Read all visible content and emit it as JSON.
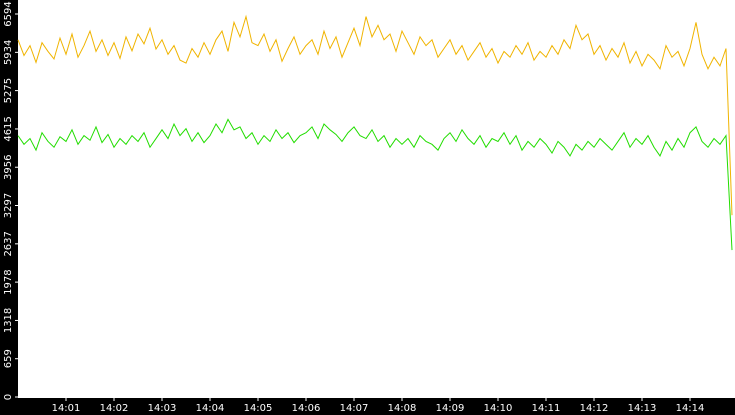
{
  "chart_data": {
    "type": "line",
    "categories": [
      null,
      null,
      null,
      null,
      null,
      null,
      null,
      null,
      "14:01",
      null,
      null,
      null,
      null,
      null,
      null,
      null,
      "14:02",
      null,
      null,
      null,
      null,
      null,
      null,
      null,
      "14:03",
      null,
      null,
      null,
      null,
      null,
      null,
      null,
      "14:04",
      null,
      null,
      null,
      null,
      null,
      null,
      null,
      "14:05",
      null,
      null,
      null,
      null,
      null,
      null,
      null,
      "14:06",
      null,
      null,
      null,
      null,
      null,
      null,
      null,
      "14:07",
      null,
      null,
      null,
      null,
      null,
      null,
      null,
      "14:08",
      null,
      null,
      null,
      null,
      null,
      null,
      null,
      "14:09",
      null,
      null,
      null,
      null,
      null,
      null,
      null,
      "14:10",
      null,
      null,
      null,
      null,
      null,
      null,
      null,
      "14:11",
      null,
      null,
      null,
      null,
      null,
      null,
      null,
      "14:12",
      null,
      null,
      null,
      null,
      null,
      null,
      null,
      "14:13",
      null,
      null,
      null,
      null,
      null,
      null,
      null,
      "14:14",
      null,
      null,
      null,
      null,
      null,
      null,
      null
    ],
    "series": [
      {
        "color": "#f0b400",
        "values": [
          6150,
          5880,
          6050,
          5760,
          6100,
          5950,
          5820,
          6180,
          5900,
          6250,
          5850,
          6050,
          6300,
          5950,
          6150,
          5880,
          6100,
          5830,
          6200,
          5960,
          6250,
          6080,
          6350,
          5990,
          6150,
          5900,
          6050,
          5800,
          5750,
          6000,
          5850,
          6100,
          5900,
          6150,
          6300,
          5950,
          6450,
          6200,
          6550,
          6100,
          6050,
          6250,
          5950,
          6150,
          5780,
          6000,
          6200,
          5900,
          6050,
          6150,
          5900,
          6300,
          6000,
          6200,
          5850,
          6100,
          6350,
          6050,
          6550,
          6200,
          6400,
          6150,
          6250,
          5950,
          6300,
          6100,
          5900,
          6200,
          6050,
          6150,
          5850,
          6000,
          6150,
          5900,
          6050,
          5800,
          5950,
          6100,
          5850,
          6000,
          5750,
          5950,
          5850,
          6050,
          5900,
          6100,
          5800,
          5950,
          5850,
          6050,
          5900,
          6150,
          6000,
          6400,
          6150,
          6250,
          5900,
          6050,
          5800,
          6000,
          5850,
          6100,
          5750,
          5950,
          5700,
          5900,
          5800,
          5650,
          6050,
          5850,
          5950,
          5700,
          6000,
          6450,
          5900,
          5650,
          5850,
          5700,
          6000,
          3130
        ]
      },
      {
        "color": "#22dd00",
        "values": [
          4500,
          4350,
          4450,
          4250,
          4550,
          4400,
          4300,
          4480,
          4400,
          4600,
          4350,
          4500,
          4420,
          4650,
          4380,
          4520,
          4300,
          4450,
          4350,
          4500,
          4400,
          4550,
          4300,
          4450,
          4600,
          4450,
          4700,
          4500,
          4620,
          4400,
          4550,
          4380,
          4500,
          4700,
          4550,
          4780,
          4600,
          4650,
          4450,
          4550,
          4350,
          4500,
          4400,
          4600,
          4450,
          4550,
          4380,
          4500,
          4550,
          4650,
          4450,
          4700,
          4600,
          4520,
          4400,
          4550,
          4650,
          4500,
          4450,
          4600,
          4400,
          4500,
          4300,
          4450,
          4350,
          4450,
          4300,
          4500,
          4400,
          4350,
          4250,
          4450,
          4550,
          4400,
          4600,
          4450,
          4350,
          4500,
          4300,
          4450,
          4400,
          4550,
          4350,
          4500,
          4250,
          4400,
          4300,
          4450,
          4350,
          4200,
          4400,
          4300,
          4150,
          4350,
          4250,
          4400,
          4300,
          4450,
          4350,
          4250,
          4400,
          4550,
          4300,
          4450,
          4350,
          4500,
          4300,
          4150,
          4400,
          4250,
          4450,
          4300,
          4550,
          4650,
          4400,
          4300,
          4450,
          4350,
          4500,
          2530
        ]
      }
    ],
    "ylim": [
      0,
      6594
    ],
    "yticks": [
      0,
      659,
      1318,
      1978,
      2637,
      3297,
      3956,
      4615,
      5275,
      5934,
      6594
    ],
    "grid": false
  }
}
